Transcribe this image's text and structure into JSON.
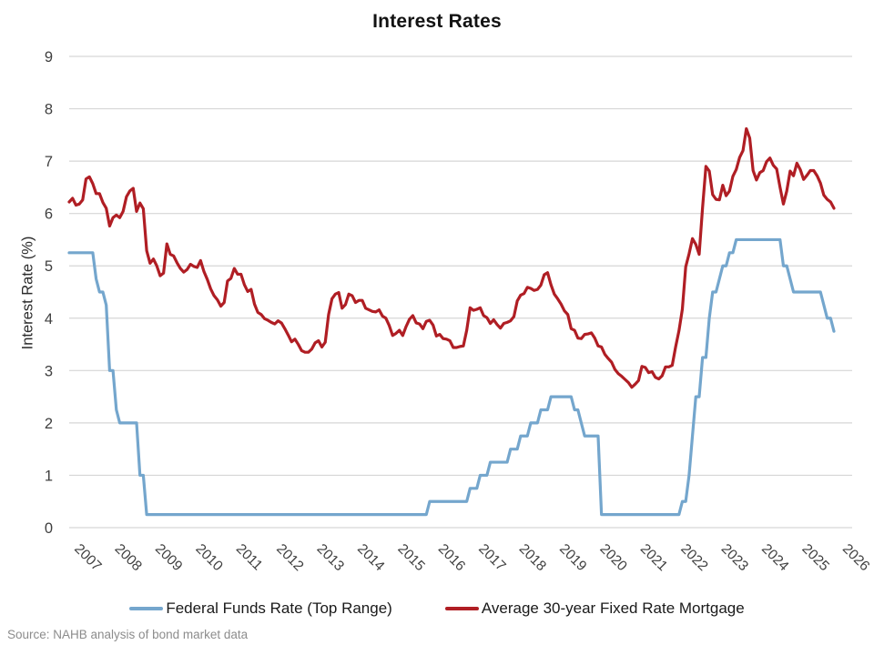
{
  "title": "Interest Rates",
  "y_axis": {
    "label": "Interest Rate (%)",
    "ticks": [
      "0",
      "1",
      "2",
      "3",
      "4",
      "5",
      "6",
      "7",
      "8",
      "9"
    ],
    "min": 0,
    "max": 9
  },
  "x_axis": {
    "years": [
      2007,
      2008,
      2009,
      2010,
      2011,
      2012,
      2013,
      2014,
      2015,
      2016,
      2017,
      2018,
      2019,
      2020,
      2021,
      2022,
      2023,
      2024,
      2025,
      2026
    ]
  },
  "legend": [
    {
      "label": "Federal Funds Rate (Top Range)",
      "color": "#74A6CD"
    },
    {
      "label": "Average 30-year Fixed Rate Mortgage",
      "color": "#B01E24"
    }
  ],
  "source_note": "Source: NAHB analysis of bond market data",
  "colors": {
    "grid": "#D6D6D6",
    "tick_text": "#3f3f3f",
    "background": "#ffffff"
  },
  "chart_data": {
    "type": "line",
    "title": "Interest Rates",
    "xlabel": "",
    "ylabel": "Interest Rate (%)",
    "ylim": [
      0,
      9
    ],
    "grid": "horizontal",
    "legend_position": "bottom",
    "frequency": "monthly",
    "x_start": "2007-01",
    "x_end": "2025-12",
    "series": [
      {
        "name": "Federal Funds Rate (Top Range)",
        "color": "#74A6CD",
        "values": [
          5.25,
          5.25,
          5.25,
          5.25,
          5.25,
          5.25,
          5.25,
          5.25,
          4.75,
          4.5,
          4.5,
          4.25,
          3.0,
          3.0,
          2.25,
          2.0,
          2.0,
          2.0,
          2.0,
          2.0,
          2.0,
          1.0,
          1.0,
          0.25,
          0.25,
          0.25,
          0.25,
          0.25,
          0.25,
          0.25,
          0.25,
          0.25,
          0.25,
          0.25,
          0.25,
          0.25,
          0.25,
          0.25,
          0.25,
          0.25,
          0.25,
          0.25,
          0.25,
          0.25,
          0.25,
          0.25,
          0.25,
          0.25,
          0.25,
          0.25,
          0.25,
          0.25,
          0.25,
          0.25,
          0.25,
          0.25,
          0.25,
          0.25,
          0.25,
          0.25,
          0.25,
          0.25,
          0.25,
          0.25,
          0.25,
          0.25,
          0.25,
          0.25,
          0.25,
          0.25,
          0.25,
          0.25,
          0.25,
          0.25,
          0.25,
          0.25,
          0.25,
          0.25,
          0.25,
          0.25,
          0.25,
          0.25,
          0.25,
          0.25,
          0.25,
          0.25,
          0.25,
          0.25,
          0.25,
          0.25,
          0.25,
          0.25,
          0.25,
          0.25,
          0.25,
          0.25,
          0.25,
          0.25,
          0.25,
          0.25,
          0.25,
          0.25,
          0.25,
          0.25,
          0.25,
          0.25,
          0.25,
          0.5,
          0.5,
          0.5,
          0.5,
          0.5,
          0.5,
          0.5,
          0.5,
          0.5,
          0.5,
          0.5,
          0.5,
          0.75,
          0.75,
          0.75,
          1.0,
          1.0,
          1.0,
          1.25,
          1.25,
          1.25,
          1.25,
          1.25,
          1.25,
          1.5,
          1.5,
          1.5,
          1.75,
          1.75,
          1.75,
          2.0,
          2.0,
          2.0,
          2.25,
          2.25,
          2.25,
          2.5,
          2.5,
          2.5,
          2.5,
          2.5,
          2.5,
          2.5,
          2.25,
          2.25,
          2.0,
          1.75,
          1.75,
          1.75,
          1.75,
          1.75,
          0.25,
          0.25,
          0.25,
          0.25,
          0.25,
          0.25,
          0.25,
          0.25,
          0.25,
          0.25,
          0.25,
          0.25,
          0.25,
          0.25,
          0.25,
          0.25,
          0.25,
          0.25,
          0.25,
          0.25,
          0.25,
          0.25,
          0.25,
          0.25,
          0.5,
          0.5,
          1.0,
          1.75,
          2.5,
          2.5,
          3.25,
          3.25,
          4.0,
          4.5,
          4.5,
          4.75,
          5.0,
          5.0,
          5.25,
          5.25,
          5.5,
          5.5,
          5.5,
          5.5,
          5.5,
          5.5,
          5.5,
          5.5,
          5.5,
          5.5,
          5.5,
          5.5,
          5.5,
          5.5,
          5.0,
          5.0,
          4.75,
          4.5,
          4.5,
          4.5,
          4.5,
          4.5,
          4.5,
          4.5,
          4.5,
          4.5,
          4.25,
          4.0,
          4.0,
          3.75
        ]
      },
      {
        "name": "Average 30-year Fixed Rate Mortgage",
        "color": "#B01E24",
        "values": [
          6.22,
          6.29,
          6.16,
          6.18,
          6.26,
          6.66,
          6.7,
          6.57,
          6.38,
          6.38,
          6.21,
          6.1,
          5.76,
          5.92,
          5.97,
          5.92,
          6.04,
          6.32,
          6.43,
          6.48,
          6.04,
          6.2,
          6.09,
          5.29,
          5.05,
          5.13,
          5.0,
          4.81,
          4.86,
          5.42,
          5.22,
          5.19,
          5.06,
          4.95,
          4.88,
          4.93,
          5.03,
          4.99,
          4.97,
          5.1,
          4.89,
          4.74,
          4.56,
          4.43,
          4.35,
          4.23,
          4.3,
          4.71,
          4.76,
          4.95,
          4.84,
          4.84,
          4.64,
          4.51,
          4.55,
          4.27,
          4.11,
          4.07,
          3.99,
          3.96,
          3.92,
          3.89,
          3.95,
          3.91,
          3.8,
          3.68,
          3.55,
          3.6,
          3.5,
          3.38,
          3.35,
          3.35,
          3.41,
          3.53,
          3.57,
          3.45,
          3.54,
          4.07,
          4.37,
          4.46,
          4.49,
          4.19,
          4.26,
          4.46,
          4.43,
          4.3,
          4.34,
          4.34,
          4.19,
          4.16,
          4.13,
          4.12,
          4.16,
          4.04,
          4.0,
          3.86,
          3.67,
          3.71,
          3.77,
          3.67,
          3.84,
          3.98,
          4.05,
          3.91,
          3.89,
          3.8,
          3.94,
          3.96,
          3.87,
          3.66,
          3.69,
          3.61,
          3.6,
          3.57,
          3.44,
          3.44,
          3.46,
          3.47,
          3.77,
          4.2,
          4.15,
          4.17,
          4.2,
          4.05,
          4.01,
          3.9,
          3.97,
          3.88,
          3.81,
          3.9,
          3.92,
          3.95,
          4.03,
          4.33,
          4.44,
          4.47,
          4.59,
          4.57,
          4.53,
          4.55,
          4.63,
          4.83,
          4.87,
          4.64,
          4.46,
          4.37,
          4.27,
          4.14,
          4.07,
          3.8,
          3.77,
          3.62,
          3.61,
          3.69,
          3.7,
          3.72,
          3.62,
          3.47,
          3.45,
          3.31,
          3.23,
          3.16,
          3.02,
          2.94,
          2.89,
          2.83,
          2.77,
          2.68,
          2.74,
          2.81,
          3.08,
          3.06,
          2.96,
          2.98,
          2.87,
          2.84,
          2.9,
          3.07,
          3.07,
          3.1,
          3.45,
          3.76,
          4.17,
          4.98,
          5.23,
          5.52,
          5.41,
          5.22,
          6.11,
          6.9,
          6.81,
          6.36,
          6.27,
          6.26,
          6.54,
          6.34,
          6.43,
          6.71,
          6.84,
          7.07,
          7.2,
          7.62,
          7.44,
          6.82,
          6.64,
          6.78,
          6.82,
          6.99,
          7.06,
          6.92,
          6.85,
          6.5,
          6.18,
          6.43,
          6.81,
          6.72,
          6.96,
          6.84,
          6.65,
          6.73,
          6.82,
          6.82,
          6.72,
          6.58,
          6.35,
          6.27,
          6.22,
          6.1
        ]
      }
    ]
  }
}
